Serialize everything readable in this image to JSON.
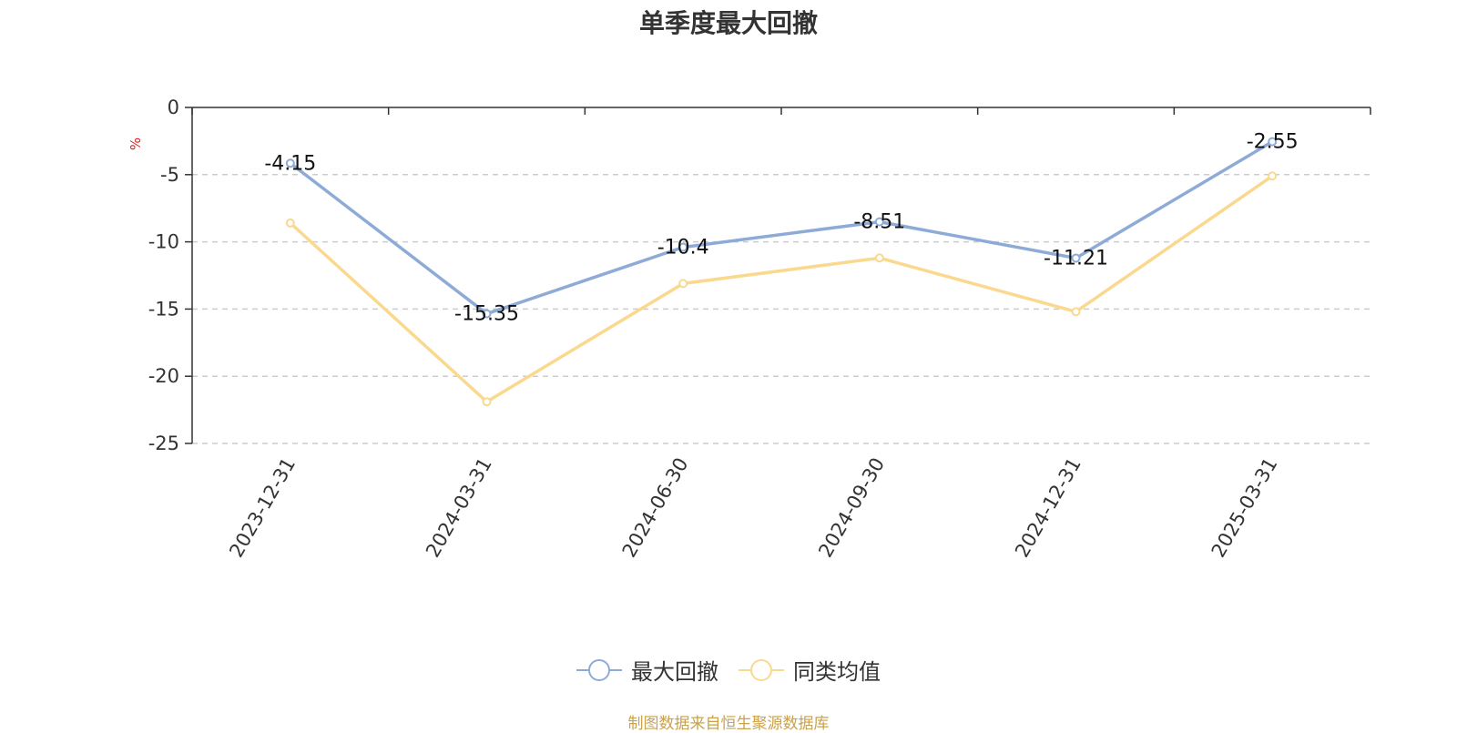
{
  "page": {
    "source_note": "制图数据来自恒生聚源数据库"
  },
  "chart_data": {
    "type": "line",
    "title": "单季度最大回撤",
    "ylabel": "%",
    "categories": [
      "2023-12-31",
      "2024-03-31",
      "2024-06-30",
      "2024-09-30",
      "2024-12-31",
      "2025-03-31"
    ],
    "ylim": [
      -25,
      0
    ],
    "yticks": [
      0,
      -5,
      -10,
      -15,
      -20,
      -25
    ],
    "grid": true,
    "legend_position": "bottom",
    "series": [
      {
        "name": "最大回撤",
        "color": "#8eabd8",
        "values": [
          -4.15,
          -15.35,
          -10.4,
          -8.51,
          -11.21,
          -2.55
        ],
        "show_labels": true
      },
      {
        "name": "同类均值",
        "color": "#fad98f",
        "values": [
          -8.6,
          -21.9,
          -13.1,
          -11.2,
          -15.2,
          -5.1
        ],
        "show_labels": false
      }
    ]
  }
}
